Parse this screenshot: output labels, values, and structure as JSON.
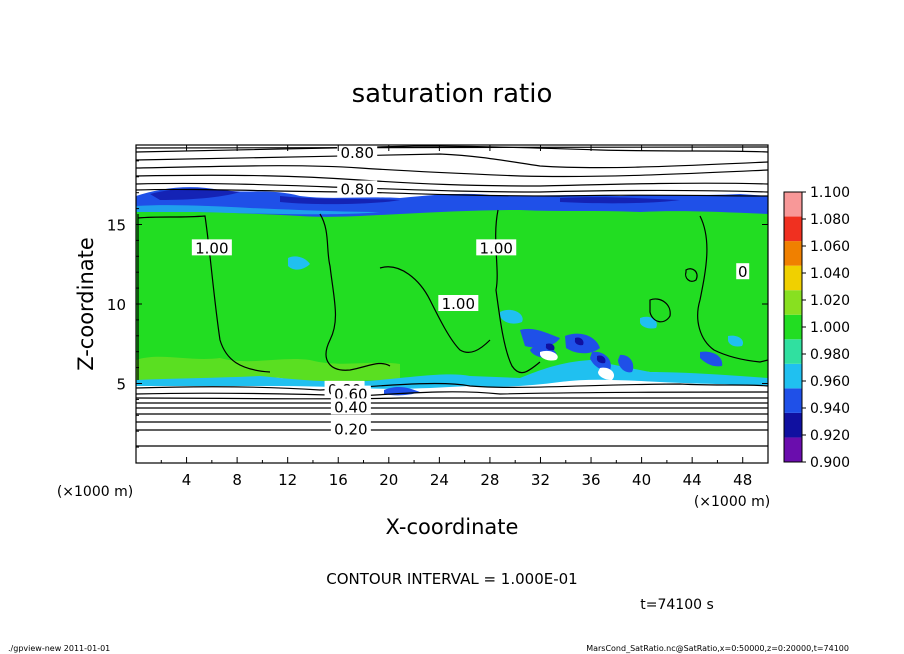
{
  "chart_data": {
    "type": "heatmap",
    "title": "saturation ratio",
    "xlabel": "X-coordinate",
    "ylabel": "Z-coordinate",
    "x_unit": "(×1000 m)",
    "y_unit": "(×1000 m)",
    "xlim": [
      0,
      50
    ],
    "ylim": [
      0,
      20
    ],
    "x_ticks": [
      4,
      8,
      12,
      16,
      20,
      24,
      28,
      32,
      36,
      40,
      44,
      48
    ],
    "y_ticks": [
      5,
      10,
      15
    ],
    "colorbar": {
      "levels": [
        0.9,
        0.92,
        0.94,
        0.96,
        0.98,
        1.0,
        1.02,
        1.04,
        1.06,
        1.08,
        1.1
      ],
      "labels": [
        "0.900",
        "0.920",
        "0.940",
        "0.960",
        "0.980",
        "1.000",
        "1.020",
        "1.040",
        "1.060",
        "1.080",
        "1.100"
      ],
      "colors": [
        "#6a0dad",
        "#1010a0",
        "#1f50e8",
        "#20c0f0",
        "#30e0a0",
        "#22dd22",
        "#88e020",
        "#f0d000",
        "#f08000",
        "#f03020",
        "#f89898"
      ]
    },
    "contour_labels": [
      {
        "text": "0.80",
        "x": 17.5,
        "y": 19.5
      },
      {
        "text": "0.80",
        "x": 17.5,
        "y": 17.2
      },
      {
        "text": "1.00",
        "x": 6.0,
        "y": 13.5
      },
      {
        "text": "1.00",
        "x": 28.5,
        "y": 13.5
      },
      {
        "text": "1.00",
        "x": 25.5,
        "y": 10.0
      },
      {
        "text": "0",
        "x": 48.0,
        "y": 12.0
      },
      {
        "text": "0.80",
        "x": 16.5,
        "y": 4.6
      },
      {
        "text": "0.60",
        "x": 17.0,
        "y": 4.3
      },
      {
        "text": "0.40",
        "x": 17.0,
        "y": 3.5
      },
      {
        "text": "0.20",
        "x": 17.0,
        "y": 2.1
      }
    ],
    "contour_interval_text": "CONTOUR INTERVAL = 1.000E-01",
    "time_text": "t=74100 s"
  },
  "footer": {
    "left": "./gpview-new  2011-01-01",
    "right": "MarsCond_SatRatio.nc@SatRatio,x=0:50000,z=0:20000,t=74100"
  }
}
